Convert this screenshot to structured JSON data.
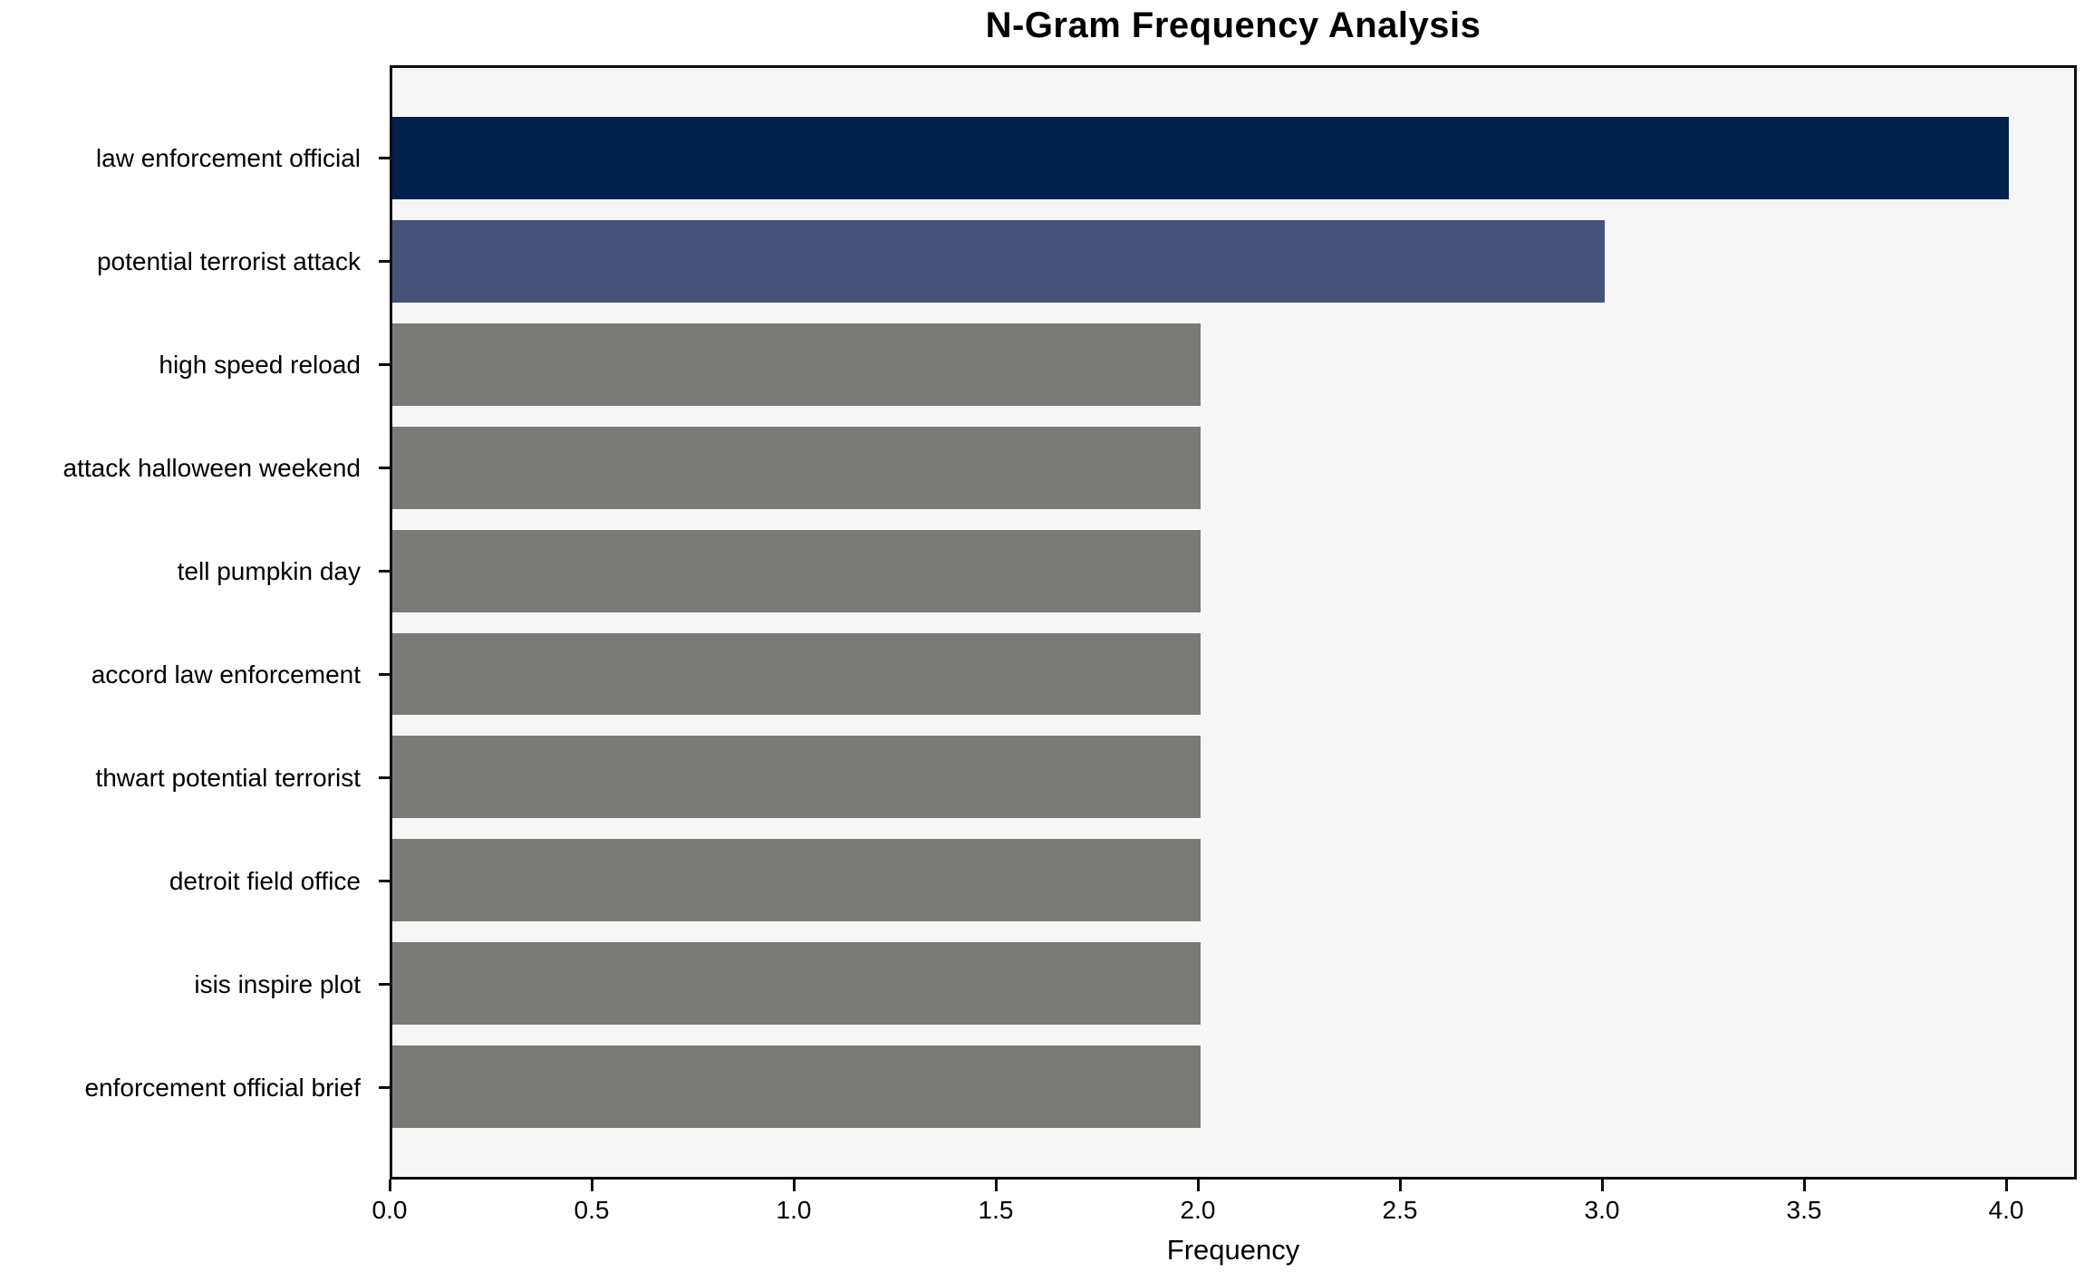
{
  "chart_data": {
    "type": "bar",
    "orientation": "horizontal",
    "title": "N-Gram Frequency Analysis",
    "xlabel": "Frequency",
    "ylabel": "",
    "categories": [
      "law enforcement official",
      "potential terrorist attack",
      "high speed reload",
      "attack halloween weekend",
      "tell pumpkin day",
      "accord law enforcement",
      "thwart potential terrorist",
      "detroit field office",
      "isis inspire plot",
      "enforcement official brief"
    ],
    "values": [
      4,
      3,
      2,
      2,
      2,
      2,
      2,
      2,
      2,
      2
    ],
    "bar_colors": [
      "#02214d",
      "#465278",
      "#7a7a77",
      "#7a7a77",
      "#7a7a77",
      "#7a7a77",
      "#7a7a77",
      "#7a7a77",
      "#7a7a77",
      "#7a7a77"
    ],
    "xticks": [
      "0.0",
      "0.5",
      "1.0",
      "1.5",
      "2.0",
      "2.5",
      "3.0",
      "3.5",
      "4.0"
    ],
    "xlim": [
      0.0,
      4.17
    ],
    "grid": false,
    "legend": null,
    "plot_background": "#f7f6f6"
  }
}
